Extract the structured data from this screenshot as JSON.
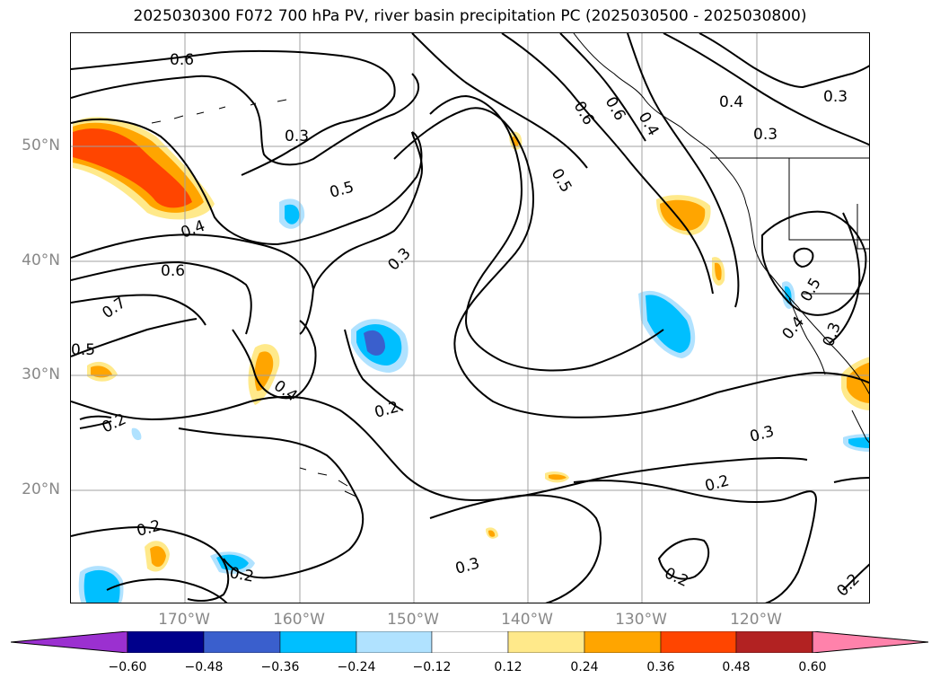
{
  "title": "2025030300 F072 700 hPa PV, river basin precipitation PC (2025030500 - 2025030800)",
  "lat_labels": [
    "50°N",
    "40°N",
    "30°N",
    "20°N"
  ],
  "lon_labels": [
    "170°W",
    "160°W",
    "150°W",
    "140°W",
    "130°W",
    "120°W"
  ],
  "contour_labels": [
    "0.6",
    "0.3",
    "0.5",
    "0.4",
    "0.6",
    "0.7",
    "0.5",
    "0.4",
    "0.2",
    "0.2",
    "0.2",
    "0.3",
    "0.2",
    "0.3",
    "0.6",
    "0.5",
    "0.6",
    "0.4",
    "0.4",
    "0.3",
    "0.3",
    "0.5",
    "0.4",
    "0.3",
    "0.2",
    "0.2",
    "0.2",
    "0.3"
  ],
  "colorbar": {
    "ticks": [
      "−0.60",
      "−0.48",
      "−0.36",
      "−0.24",
      "−0.12",
      "0.12",
      "0.24",
      "0.36",
      "0.48",
      "0.60"
    ],
    "colors": [
      "#9b30d0",
      "#00008b",
      "#3a5fcd",
      "#00bfff",
      "#b0e2ff",
      "#ffffff",
      "#ffe98a",
      "#ffa500",
      "#ff4500",
      "#b22222",
      "#ff82ab"
    ]
  },
  "shading_colors": {
    "neg_light": "#b0e2ff",
    "neg_mid": "#00bfff",
    "neg_dark": "#3a5fcd",
    "pos_light": "#ffe98a",
    "pos_mid": "#ffa500",
    "pos_dark": "#ff4500"
  }
}
